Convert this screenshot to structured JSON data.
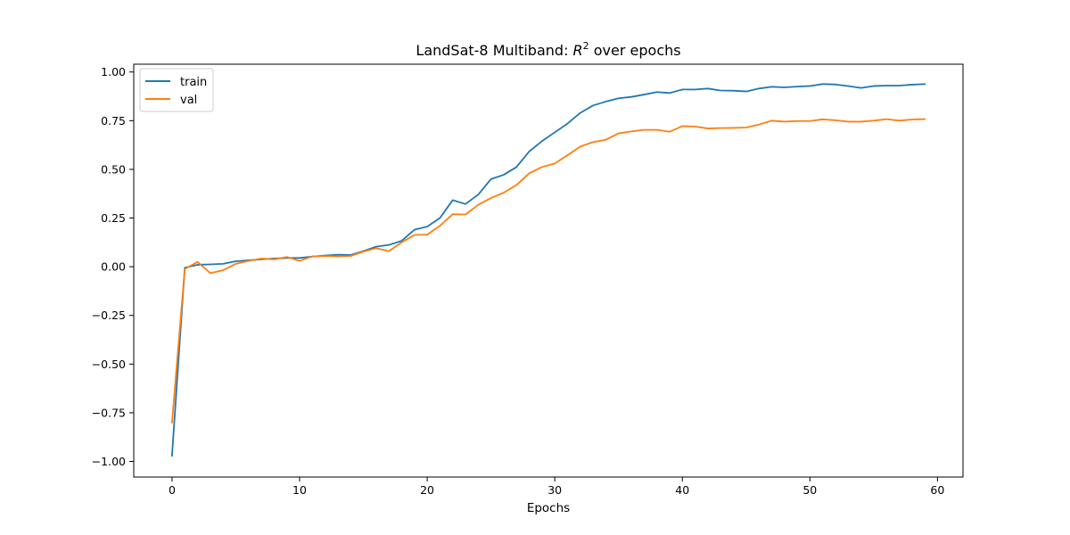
{
  "chart_data": {
    "type": "line",
    "title_prefix": "LandSat-8 Multiband: ",
    "title_var": "R",
    "title_sup": "2",
    "title_suffix": " over epochs",
    "xlabel": "Epochs",
    "ylabel": "",
    "xlim": [
      -3,
      62
    ],
    "ylim": [
      -1.08,
      1.04
    ],
    "xticks": [
      0,
      10,
      20,
      30,
      40,
      50,
      60
    ],
    "xtick_labels": [
      "0",
      "10",
      "20",
      "30",
      "40",
      "50",
      "60"
    ],
    "yticks": [
      -1.0,
      -0.75,
      -0.5,
      -0.25,
      0.0,
      0.25,
      0.5,
      0.75,
      1.0
    ],
    "ytick_labels": [
      "−1.00",
      "−0.75",
      "−0.50",
      "−0.25",
      "0.00",
      "0.25",
      "0.50",
      "0.75",
      "1.00"
    ],
    "grid": false,
    "legend_position": "top-left",
    "x": [
      0,
      1,
      2,
      3,
      4,
      5,
      6,
      7,
      8,
      9,
      10,
      11,
      12,
      13,
      14,
      15,
      16,
      17,
      18,
      19,
      20,
      21,
      22,
      23,
      24,
      25,
      26,
      27,
      28,
      29,
      30,
      31,
      32,
      33,
      34,
      35,
      36,
      37,
      38,
      39,
      40,
      41,
      42,
      43,
      44,
      45,
      46,
      47,
      48,
      49,
      50,
      51,
      52,
      53,
      54,
      55,
      56,
      57,
      58,
      59
    ],
    "series": [
      {
        "name": "train",
        "color": "#1f77b4",
        "values": [
          -0.97,
          -0.005,
          0.01,
          0.012,
          0.015,
          0.028,
          0.033,
          0.038,
          0.042,
          0.045,
          0.045,
          0.052,
          0.058,
          0.062,
          0.06,
          0.08,
          0.103,
          0.112,
          0.133,
          0.19,
          0.206,
          0.25,
          0.342,
          0.322,
          0.37,
          0.45,
          0.472,
          0.512,
          0.592,
          0.645,
          0.69,
          0.735,
          0.79,
          0.828,
          0.848,
          0.865,
          0.872,
          0.884,
          0.897,
          0.892,
          0.91,
          0.91,
          0.915,
          0.905,
          0.904,
          0.9,
          0.915,
          0.924,
          0.921,
          0.925,
          0.928,
          0.938,
          0.936,
          0.928,
          0.918,
          0.928,
          0.93,
          0.93,
          0.935,
          0.938
        ]
      },
      {
        "name": "val",
        "color": "#ff7f0e",
        "values": [
          -0.8,
          -0.012,
          0.025,
          -0.033,
          -0.018,
          0.015,
          0.03,
          0.042,
          0.038,
          0.05,
          0.03,
          0.053,
          0.055,
          0.053,
          0.055,
          0.078,
          0.095,
          0.08,
          0.125,
          0.163,
          0.165,
          0.21,
          0.27,
          0.268,
          0.318,
          0.353,
          0.38,
          0.42,
          0.48,
          0.512,
          0.53,
          0.573,
          0.617,
          0.64,
          0.652,
          0.685,
          0.695,
          0.703,
          0.703,
          0.693,
          0.722,
          0.72,
          0.71,
          0.712,
          0.713,
          0.715,
          0.73,
          0.75,
          0.745,
          0.748,
          0.748,
          0.757,
          0.752,
          0.745,
          0.745,
          0.75,
          0.758,
          0.75,
          0.756,
          0.758
        ]
      }
    ]
  }
}
